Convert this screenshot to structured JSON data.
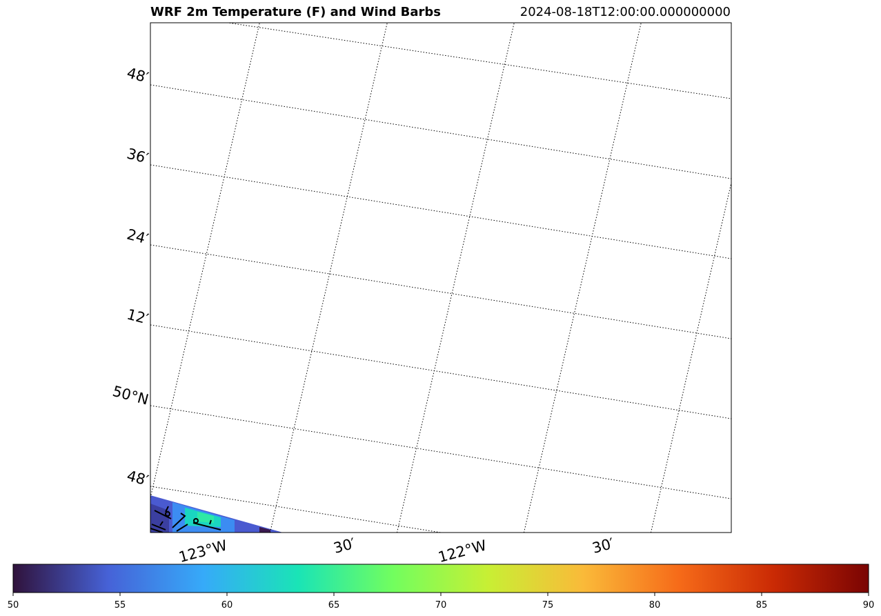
{
  "title": "WRF 2m Temperature (F) and Wind Barbs",
  "valid_time": "2024-08-18T12:00:00.000000000",
  "lat_labels": [
    "48′",
    "36′",
    "24′",
    "12′",
    "50°N",
    "48′"
  ],
  "lon_labels": [
    "123°W",
    "30′",
    "122°W",
    "30′"
  ],
  "colorbar": {
    "min": 50,
    "max": 90,
    "ticks": [
      "50",
      "55",
      "60",
      "65",
      "70",
      "75",
      "80",
      "85",
      "90"
    ],
    "colormap": "turbo",
    "colors": [
      "#30123b",
      "#4662d7",
      "#36aaf9",
      "#1ae4b6",
      "#72fe5e",
      "#c8ef34",
      "#faba39",
      "#f66b19",
      "#ca2a04",
      "#7a0403"
    ]
  },
  "gridline_style": "dotted",
  "field_colors": {
    "cool": "#4a5ad0",
    "mid": "#3c8cf2",
    "warm": "#1ad6c0",
    "dark": "#3a1a50"
  }
}
